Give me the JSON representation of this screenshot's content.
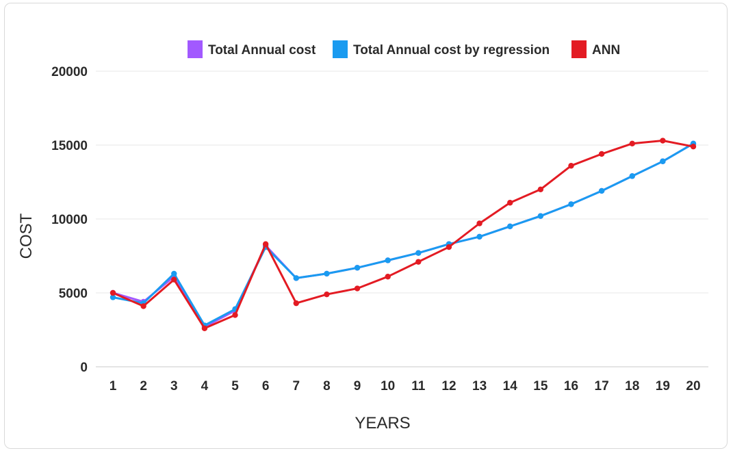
{
  "chart_data": {
    "type": "line",
    "xlabel": "YEARS",
    "ylabel": "COST",
    "ylim": [
      0,
      20000
    ],
    "yticks": [
      0,
      5000,
      10000,
      15000,
      20000
    ],
    "categories": [
      "1",
      "2",
      "3",
      "4",
      "5",
      "6",
      "7",
      "8",
      "9",
      "10",
      "11",
      "12",
      "13",
      "14",
      "15",
      "16",
      "17",
      "18",
      "19",
      "20"
    ],
    "grid": "horizontal",
    "legend_position": "top",
    "series": [
      {
        "name": "Total Annual cost",
        "color": "#a259ff",
        "values": [
          5000,
          4400,
          6100,
          2700,
          3800,
          8200,
          6000,
          6300,
          6700,
          7200,
          7700,
          8300,
          8800,
          9500,
          10200,
          11000,
          11900,
          12900,
          13900,
          15100
        ]
      },
      {
        "name": "Total Annual cost by regression",
        "color": "#1a9bf0",
        "values": [
          4700,
          4300,
          6300,
          2800,
          3900,
          8100,
          6000,
          6300,
          6700,
          7200,
          7700,
          8300,
          8800,
          9500,
          10200,
          11000,
          11900,
          12900,
          13900,
          15100
        ]
      },
      {
        "name": "ANN",
        "color": "#e31b23",
        "values": [
          5000,
          4100,
          5900,
          2600,
          3500,
          8300,
          4300,
          4900,
          5300,
          6100,
          7100,
          8100,
          9700,
          11100,
          12000,
          13600,
          14400,
          15100,
          15300,
          14900
        ]
      }
    ]
  }
}
